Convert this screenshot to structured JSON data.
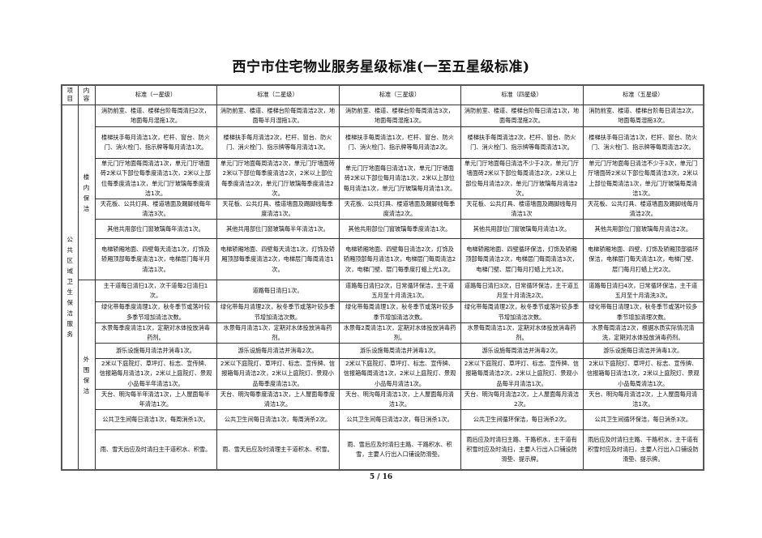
{
  "title": "西宁市住宅物业服务星级标准(一至五星级标准)",
  "page_number": "5 / 16",
  "table": {
    "headers": [
      "项目",
      "内容",
      "标准（一星级）",
      "标准（二星级）",
      "标准（三星级）",
      "标准（四星级）",
      "标准（五星级）"
    ],
    "project": "公共区域卫生保洁服务",
    "groups": [
      {
        "name": "楼内保洁",
        "rows": [
          [
            "消防前室、楼道、楼梯台阶每周清扫2次，地面每月湿拖1次。",
            "消防前室、楼道、楼梯台阶每周清洁2次，地面每半月湿拖1次。",
            "消防前室、楼道、楼梯台阶每周清洁3次，地面每周湿拖1次。",
            "消防前室、楼道、楼梯台阶每日清洁1次，地面每周湿拖2次。",
            "消防前室、楼道、楼梯台阶每日清洁2次，地面每周湿拖3次。"
          ],
          [
            "楼梯扶手每月清洁1次，栏杆、窗台、防火门、消火栓门、指示牌等每月清洁1次。",
            "楼梯扶手每月清洁2次，栏杆、窗台、防火门、消火栓门、指示牌等每月清洁1次。",
            "楼梯扶手每周清洁1次，栏杆、窗台、防火门、消火栓门、指示牌等每月清洁2次。",
            "楼梯扶手每周清洁2次，栏杆、窗台、防火门、消火栓门、指示牌等每周清洁1次。",
            "楼梯扶手每日清洁1次，栏杆、窗台、防火门、消火栓门、指示牌等每周清洁2次。"
          ],
          [
            "单元门厅地面每周清洁1次，单元门厅墙面砖2米以下部位每季度清洁1次，2米以上部位每季度清洁1次，单元门厅玻璃每季度清洁1次。",
            "单元门厅地面每周清洁2次，单元门厅墙面砖2米以下部位每季度清洁2次，2米以上部位每季度清洁2次，单元门厅玻璃每季度清洁2次。",
            "单元门厅地面每日清洁1次，单元门厅墙面砖2米以下部位每月清洁1次，2米以上部位每月清洁1次，单元门厅玻璃每月清洁1次。",
            "单元门厅地面每日清洁不少于2次，单元门厅墙面砖2米以下部位每周清洁2次，2米以上部位每月清洁2次，单元门厅玻璃每月清洁2次。",
            "单元门厅地面每日清洁不少于3次，单元门厅墙面砖2米以下部位每周清洁3次，2米以上部位每周清洁1次，单元门厅玻璃每周清洁1次。"
          ],
          [
            "天花板、公共灯具、楼道墙面及踢脚线每年清洁3次。",
            "天花板、公共灯具、楼道墙面及踢脚线每季度清洁1次。",
            "天花板、公共灯具、楼道墙面及踢脚线每季度清洁2次。",
            "天花板、公共灯具、楼道墙面及踢脚线每月清洁1次",
            "天花板、公共灯具、楼道墙面及踢脚线每月清洁2次。"
          ],
          [
            "其他共用部位门窗玻璃每年清洁1次。",
            "其他共用部位门窗玻璃每半年清洁1次。",
            "其他共用部位门窗玻璃每季度清洁1次。",
            "其他共用部位门窗玻璃每月清洁1次。",
            "其他共用部位门窗玻璃每月清洁2次。"
          ],
          [
            "电梯轿厢地面、四壁每天清洁1次，灯饰及轿厢顶部每季度清洁1次，电梯层门每半月清洁1次。",
            "电梯轿厢地面、四壁每天清洁1次，灯饰及轿厢顶部每季度清洁2次，电梯层门每周清洁1次。",
            "电梯轿厢地面、四壁每日清洁2次，灯饰及轿厢顶部每月清洁1次，电梯层门每周清洁2次，电梯门壁、层门每季度打蜡上光1次。",
            "电梯轿厢地面、四壁循环保洁，灯饰及轿厢顶部每周清洁2次，电梯层门每周清洁3次，电梯门壁、层门每月打蜡上光1次。",
            "电梯轿厢地面、四壁、灯饰及轿厢顶部循环保洁，电梯层门每天清洁1次，电梯门壁、层门每月打蜡上光2次。"
          ]
        ]
      },
      {
        "name": "外围保洁",
        "rows": [
          [
            "主干道每日清扫1次，次干道每2日清扫1次。",
            "道路每日清扫1次。",
            "道路每日清扫2次，日常循环保洁，主干道五月至十月清洗1次。",
            "道路每日清扫3次，日常循环保洁，主干道五月至十月清洗2次。",
            "道路每日清扫4次，日常循环保洁，主干道五月至十月清洗3次。"
          ],
          [
            "绿化带每季度清理1次，秋冬季节或落叶较多季节增加清洁次数。",
            "绿化带每月清理2次，秋冬季节或落叶较多季节增加清洁次数。",
            "绿化带每周清理1次，秋冬季节或落叶较多季节增加清洁次数。",
            "绿化带每周清理2次，秋冬季节或落叶较多季节增加清洁次数。",
            "绿化带每日清理1次，秋冬季节或落叶较多季节增加清理次数。"
          ],
          [
            "水景每季度清洁1次，定期对水体投放消毒药剂。",
            "水景每月清洁1次，定期对水体投放消毒药剂。",
            "水景每2周清洁1次，定期对水体投放消毒药剂。",
            "水景每周清洁1次，定期对水体投放消毒药剂。",
            "水景每周清洁2次，根据水质实际情况清洗，定期对水体投放消毒药剂。"
          ],
          [
            "游乐设施每月清洁并消毒1次。",
            "游乐设施每月清洁并消毒2次。",
            "游乐设施每周清洁并消毒1次。",
            "游乐设施每周清洁并消毒2次。",
            "游乐设施每日清洁并消毒1次。"
          ],
          [
            "2米以下庭院灯、草坪灯、标志、宣传牌、信报箱每月清洁1次，2米以上庭院灯、景观小品每半年清洁1次。",
            "2米以下庭院灯、草坪灯、标志、宣传牌、信报箱每月清洁2次，2米以上庭院灯、景观小品每季度清洁1次。",
            "2米以下庭院灯、草坪灯、标志、宣传牌、信报箱每周清洁1次，2米以上庭院灯、景观小品每月清洁1次。",
            "2米以下庭院灯、草坪灯、标志、宣传牌、信报箱每周清洁2次，2米以上庭院灯、景观小品每半月清洁1次。",
            "2米以下庭院灯、草坪灯、标志、宣传牌、信报箱每日清洁1次，2米以上庭院灯、景观小品每周清洁1次。"
          ],
          [
            "天台、明沟每半年清洁1次，上人屋面每半年清洁1次。",
            "天台、明沟每季度清洁1次，上人屋面每季度清洁1次。",
            "天台、明沟每月清洁1次，上人屋面每月清洁1次。",
            "天台、明沟每月清洁2次，上人屋面每月清洁2次。",
            "天台、明沟每月清洁2次，上人屋面每月清洁1次。"
          ],
          [
            "公共卫生间每日清洁1次，每周消杀1次。",
            "公共卫生间每日清洁1次，每周消杀2次。",
            "公共卫生间每日清洁2次，每日消杀1次。",
            "公共卫生间循环保洁，每日消杀2次。",
            "公共卫生间循环保洁，每日消杀3次。"
          ],
          [
            "雨、雪天后应及时清扫主干道积水、积雪。",
            "雨、雪天后应及时清理主干道积水、积雪。",
            "雨、雪后应及时清扫主路、干路积水、积雪，主要人行出入口铺设防滑垫。",
            "雨后应及时清扫主路、干路积水，主干道有积雪时应及时清扫，主要人行出入口铺设防滑垫、提示牌。",
            "雨后应及时清扫主路、干路积水，主干道有积雪时应及时清扫，主要人行出入口铺设防滑垫、提示牌。"
          ]
        ]
      }
    ]
  }
}
